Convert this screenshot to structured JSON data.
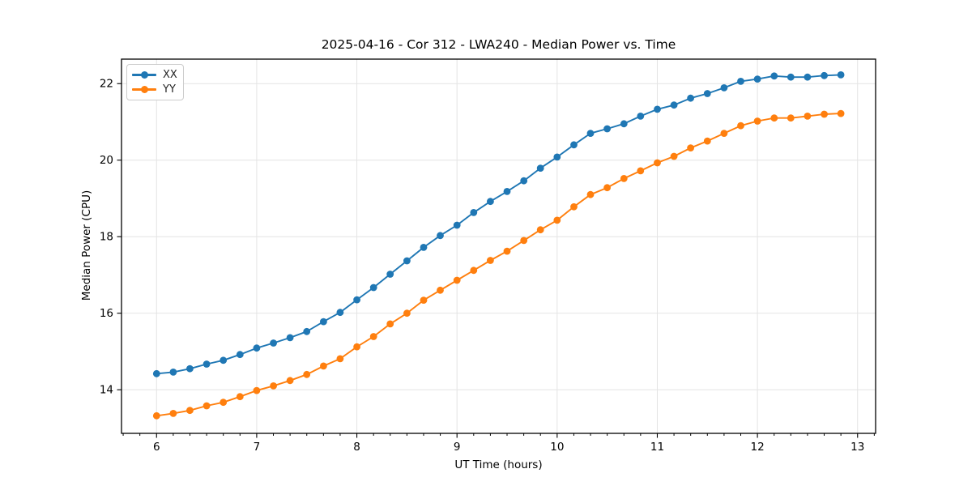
{
  "chart_data": {
    "type": "line",
    "title": "2025-04-16 - Cor 312 - LWA240 - Median Power vs. Time",
    "xlabel": "UT Time (hours)",
    "ylabel": "Median Power (CPU)",
    "xlim": [
      5.65,
      13.18
    ],
    "ylim": [
      12.86,
      22.64
    ],
    "x_ticks": [
      6,
      7,
      8,
      9,
      10,
      11,
      12,
      13
    ],
    "y_ticks": [
      14,
      16,
      18,
      20,
      22
    ],
    "x_minor_step": 0.166667,
    "grid": true,
    "grid_color": "#e4e4e4",
    "spine_color": "#000000",
    "tick_label_color": "#000000",
    "legend_position": "upper-left",
    "x": [
      6.0,
      6.167,
      6.333,
      6.5,
      6.667,
      6.833,
      7.0,
      7.167,
      7.333,
      7.5,
      7.667,
      7.833,
      8.0,
      8.167,
      8.333,
      8.5,
      8.667,
      8.833,
      9.0,
      9.167,
      9.333,
      9.5,
      9.667,
      9.833,
      10.0,
      10.167,
      10.333,
      10.5,
      10.667,
      10.833,
      11.0,
      11.167,
      11.333,
      11.5,
      11.667,
      11.833,
      12.0,
      12.167,
      12.333,
      12.5,
      12.667,
      12.833
    ],
    "series": [
      {
        "name": "XX",
        "color": "#1f77b4",
        "values": [
          14.42,
          14.46,
          14.55,
          14.67,
          14.77,
          14.92,
          15.09,
          15.22,
          15.36,
          15.52,
          15.78,
          16.02,
          16.35,
          16.67,
          17.02,
          17.37,
          17.72,
          18.03,
          18.3,
          18.63,
          18.92,
          19.18,
          19.46,
          19.79,
          20.08,
          20.4,
          20.7,
          20.82,
          20.95,
          21.15,
          21.33,
          21.44,
          21.62,
          21.74,
          21.89,
          22.06,
          22.12,
          22.2,
          22.17,
          22.17,
          22.21,
          22.23
        ]
      },
      {
        "name": "YY",
        "color": "#ff7f0e",
        "values": [
          13.32,
          13.38,
          13.46,
          13.58,
          13.67,
          13.82,
          13.98,
          14.1,
          14.24,
          14.4,
          14.62,
          14.81,
          15.12,
          15.39,
          15.72,
          16.0,
          16.34,
          16.6,
          16.86,
          17.12,
          17.38,
          17.62,
          17.9,
          18.18,
          18.43,
          18.78,
          19.1,
          19.28,
          19.52,
          19.72,
          19.93,
          20.1,
          20.32,
          20.5,
          20.7,
          20.9,
          21.02,
          21.1,
          21.1,
          21.15,
          21.2,
          21.22
        ]
      }
    ],
    "legend": {
      "entries": [
        {
          "label": "XX"
        },
        {
          "label": "YY"
        }
      ]
    }
  }
}
